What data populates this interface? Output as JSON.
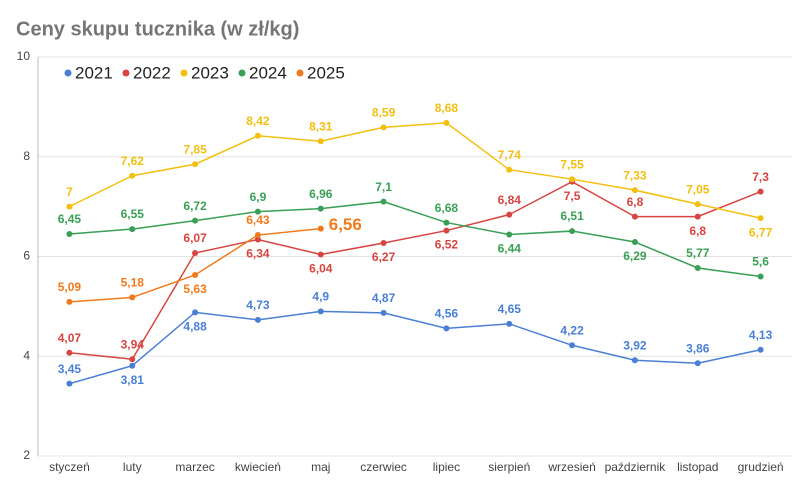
{
  "chart_data": {
    "type": "line",
    "title": "Ceny skupu tucznika (w zł/kg)",
    "categories": [
      "styczeń",
      "luty",
      "marzec",
      "kwiecień",
      "maj",
      "czerwiec",
      "lipiec",
      "sierpień",
      "wrzesień",
      "październik",
      "listopad",
      "grudzień"
    ],
    "ylim": [
      2,
      10
    ],
    "yticks": [
      2,
      4,
      6,
      8,
      10
    ],
    "grid": true,
    "legend": "top",
    "series": [
      {
        "name": "2021",
        "color": "#4a7fd4",
        "values": [
          3.45,
          3.81,
          4.88,
          4.73,
          4.9,
          4.87,
          4.56,
          4.65,
          4.22,
          3.92,
          3.86,
          4.13
        ],
        "value_labels": [
          "3,45",
          "3,81",
          "4,88",
          "4,73",
          "4,9",
          "4,87",
          "4,56",
          "4,65",
          "4,22",
          "3,92",
          "3,86",
          "4,13"
        ]
      },
      {
        "name": "2022",
        "color": "#d64541",
        "values": [
          4.07,
          3.94,
          6.07,
          6.34,
          6.04,
          6.27,
          6.52,
          6.84,
          7.5,
          6.8,
          6.8,
          7.3
        ],
        "value_labels": [
          "4,07",
          "3,94",
          "6,07",
          "6,34",
          "6,04",
          "6,27",
          "6,52",
          "6,84",
          "7,5",
          "6,8",
          "6,8",
          "7,3"
        ]
      },
      {
        "name": "2023",
        "color": "#f2bf0f",
        "values": [
          7,
          7.62,
          7.85,
          8.42,
          8.31,
          8.59,
          8.68,
          7.74,
          7.55,
          7.33,
          7.05,
          6.77
        ],
        "value_labels": [
          "7",
          "7,62",
          "7,85",
          "8,42",
          "8,31",
          "8,59",
          "8,68",
          "7,74",
          "7,55",
          "7,33",
          "7,05",
          "6,77"
        ]
      },
      {
        "name": "2024",
        "color": "#3a9f56",
        "values": [
          6.45,
          6.55,
          6.72,
          6.9,
          6.96,
          7.1,
          6.68,
          6.44,
          6.51,
          6.29,
          5.77,
          5.6
        ],
        "value_labels": [
          "6,45",
          "6,55",
          "6,72",
          "6,9",
          "6,96",
          "7,1",
          "6,68",
          "6,44",
          "6,51",
          "6,29",
          "5,77",
          "5,6"
        ]
      },
      {
        "name": "2025",
        "color": "#ef7a1c",
        "values": [
          5.09,
          5.18,
          5.63,
          6.43,
          6.56,
          null,
          null,
          null,
          null,
          null,
          null,
          null
        ],
        "value_labels": [
          "5,09",
          "5,18",
          "5,63",
          "6,43",
          "6,56",
          null,
          null,
          null,
          null,
          null,
          null,
          null
        ]
      }
    ]
  }
}
